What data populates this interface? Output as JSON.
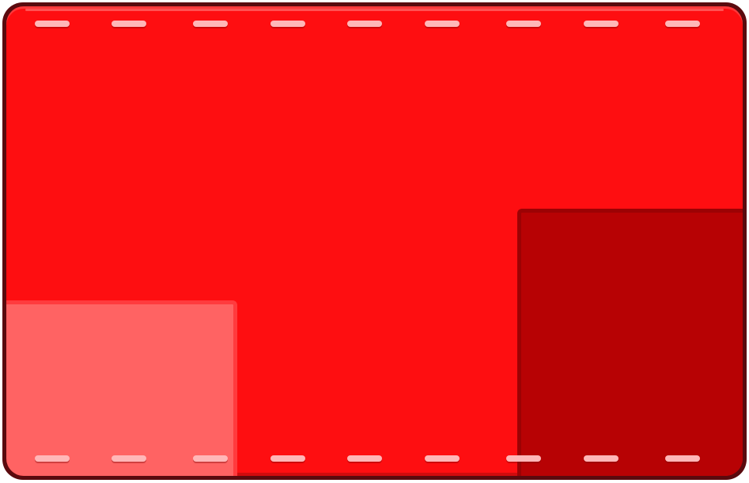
{
  "panel": {
    "colors": {
      "outline": "#5a0a0e",
      "face": "#fe0e11",
      "patch_light": "#ff6363",
      "patch_dark": "#b70204",
      "stitch": "#ffb7b8"
    },
    "stitch_count_top": 9,
    "stitch_count_bottom": 9
  }
}
